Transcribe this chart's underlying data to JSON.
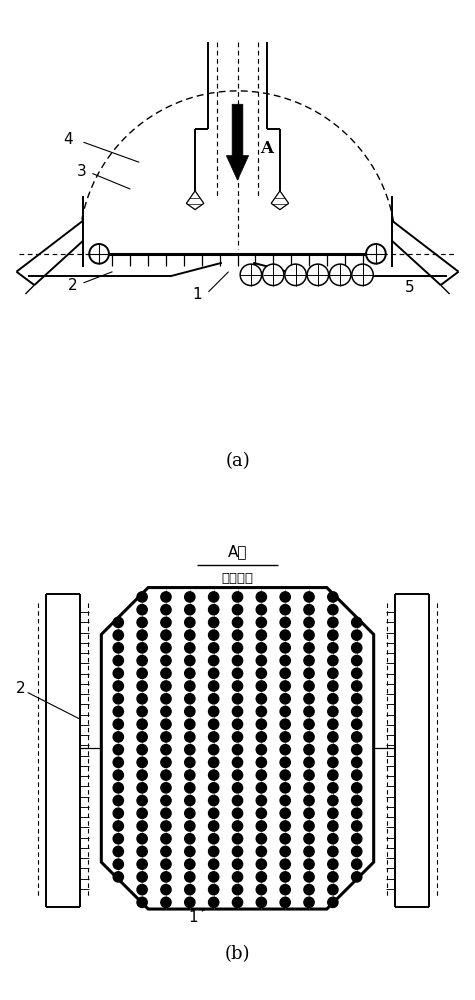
{
  "fig_width": 4.75,
  "fig_height": 10.0,
  "dpi": 100,
  "bg_color": "#ffffff",
  "title_b1": "A向",
  "title_b2": "不按比例",
  "label_a": "(a)",
  "label_b": "(b)"
}
